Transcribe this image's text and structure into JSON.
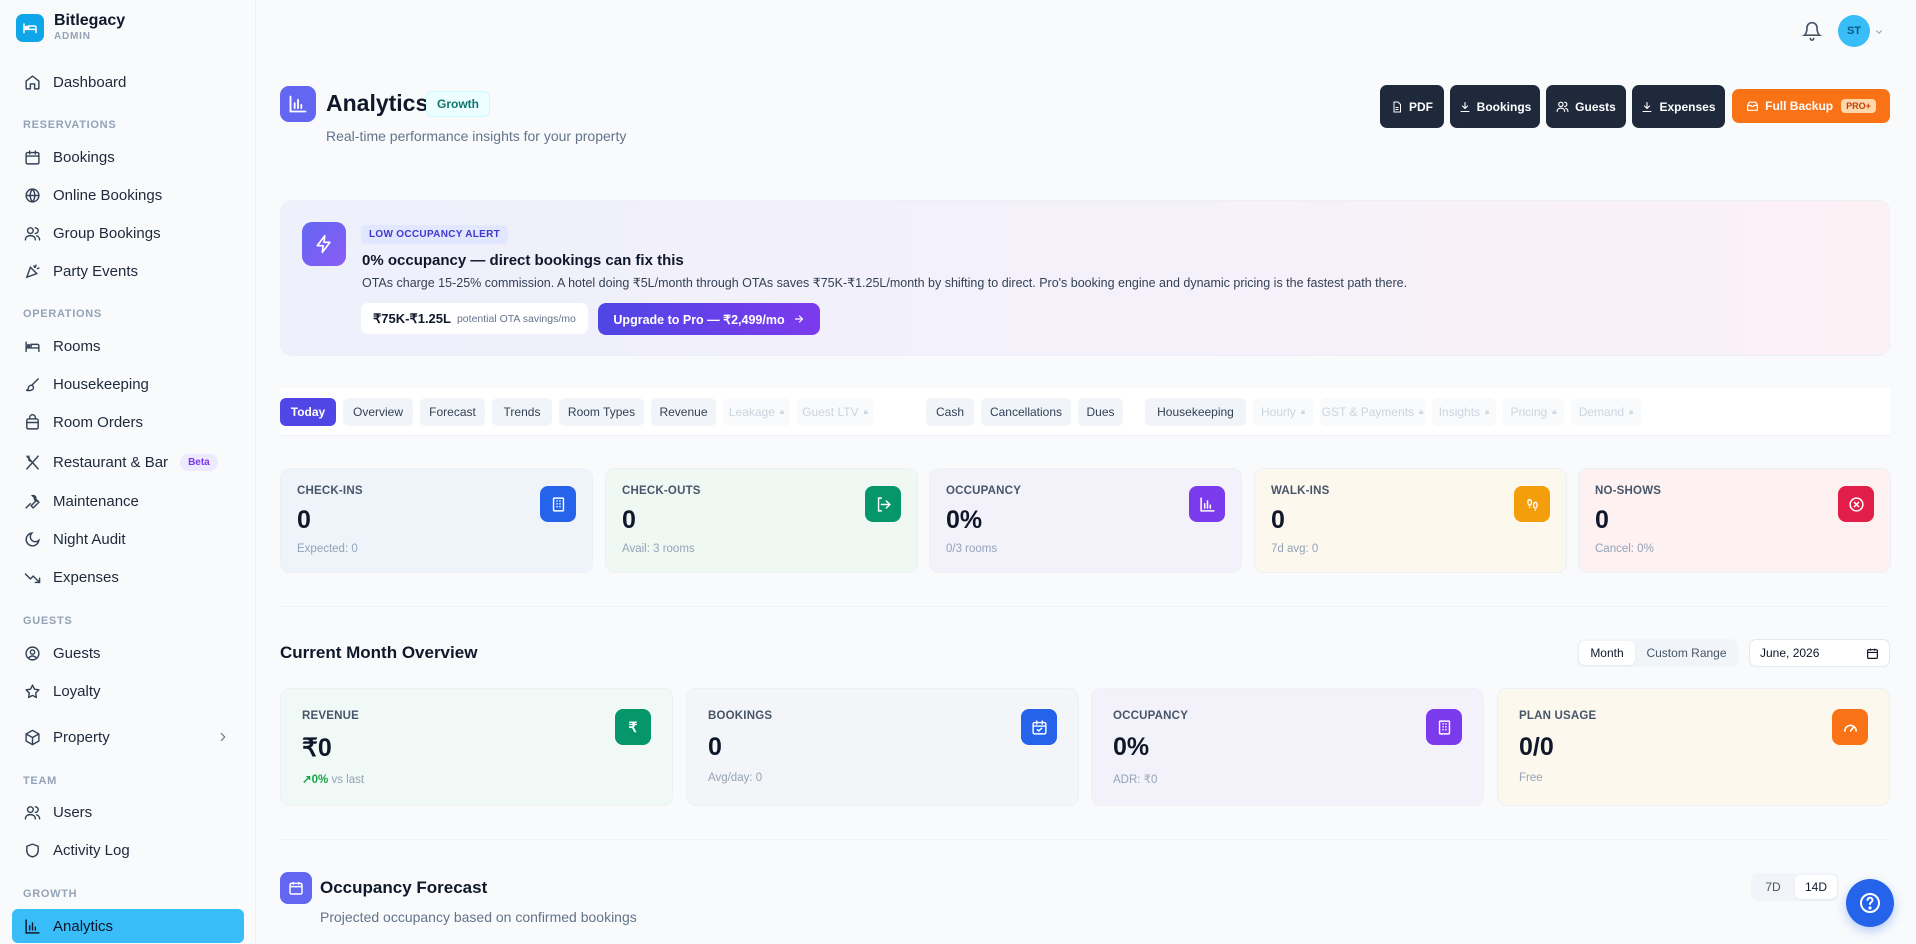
{
  "brand": {
    "name": "Bitlegacy",
    "role": "ADMIN"
  },
  "sidebar": {
    "dashboard": "Dashboard",
    "sections": {
      "reservations": "RESERVATIONS",
      "operations": "OPERATIONS",
      "guests": "GUESTS",
      "team": "TEAM",
      "growth": "GROWTH"
    },
    "reservations": [
      "Bookings",
      "Online Bookings",
      "Group Bookings",
      "Party Events"
    ],
    "operations": [
      "Rooms",
      "Housekeeping",
      "Room Orders",
      "Restaurant & Bar",
      "Maintenance",
      "Night Audit",
      "Expenses"
    ],
    "beta": "Beta",
    "guests": [
      "Guests",
      "Loyalty",
      "Property"
    ],
    "team": [
      "Users",
      "Activity Log"
    ],
    "growth": [
      "Analytics"
    ]
  },
  "user": {
    "initials": "ST"
  },
  "header": {
    "title": "Analytics",
    "badge": "Growth",
    "subtitle": "Real-time performance insights for your property",
    "buttons": {
      "pdf": "PDF",
      "bookings": "Bookings",
      "guests": "Guests",
      "expenses": "Expenses",
      "backup": "Full Backup",
      "backup_tag": "PRO+"
    }
  },
  "alert": {
    "badge": "LOW OCCUPANCY ALERT",
    "title": "0% occupancy — direct bookings can fix this",
    "description": "OTAs charge 15-25% commission. A hotel doing ₹5L/month through OTAs saves ₹75K-₹1.25L/month by shifting to direct. Pro's booking engine and dynamic pricing is the fastest path there.",
    "savings_value": "₹75K-₹1.25L",
    "savings_label": "potential OTA savings/mo",
    "upgrade": "Upgrade to Pro — ₹2,499/mo"
  },
  "tabs": {
    "today": "Today",
    "overview": "Overview",
    "forecast": "Forecast",
    "trends": "Trends",
    "room_types": "Room Types",
    "revenue": "Revenue",
    "leakage": "Leakage",
    "guest_ltv": "Guest LTV",
    "cash": "Cash",
    "cancellations": "Cancellations",
    "dues": "Dues",
    "housekeeping": "Housekeeping",
    "hourly": "Hourly",
    "gst": "GST & Payments",
    "insights": "Insights",
    "pricing": "Pricing",
    "demand": "Demand"
  },
  "today_stats": {
    "checkins": {
      "label": "CHECK-INS",
      "value": "0",
      "sub": "Expected: 0"
    },
    "checkouts": {
      "label": "CHECK-OUTS",
      "value": "0",
      "sub": "Avail: 3 rooms"
    },
    "occupancy": {
      "label": "OCCUPANCY",
      "value": "0%",
      "sub": "0/3 rooms"
    },
    "walkins": {
      "label": "WALK-INS",
      "value": "0",
      "sub": "7d avg: 0"
    },
    "noshows": {
      "label": "NO-SHOWS",
      "value": "0",
      "sub": "Cancel: 0%"
    }
  },
  "month_overview": {
    "title": "Current Month Overview",
    "mode_month": "Month",
    "mode_custom": "Custom Range",
    "month_value": "June, 2026",
    "revenue": {
      "label": "REVENUE",
      "value": "₹0",
      "trend": "0%",
      "trend_suffix": "vs last"
    },
    "bookings": {
      "label": "BOOKINGS",
      "value": "0",
      "sub": "Avg/day: 0"
    },
    "occupancy": {
      "label": "OCCUPANCY",
      "value": "0%",
      "sub": "ADR: ₹0"
    },
    "plan": {
      "label": "PLAN USAGE",
      "value": "0/0",
      "sub": "Free"
    }
  },
  "forecast": {
    "title": "Occupancy Forecast",
    "subtitle": "Projected occupancy based on confirmed bookings",
    "range_7d": "7D",
    "range_14d": "14D"
  }
}
